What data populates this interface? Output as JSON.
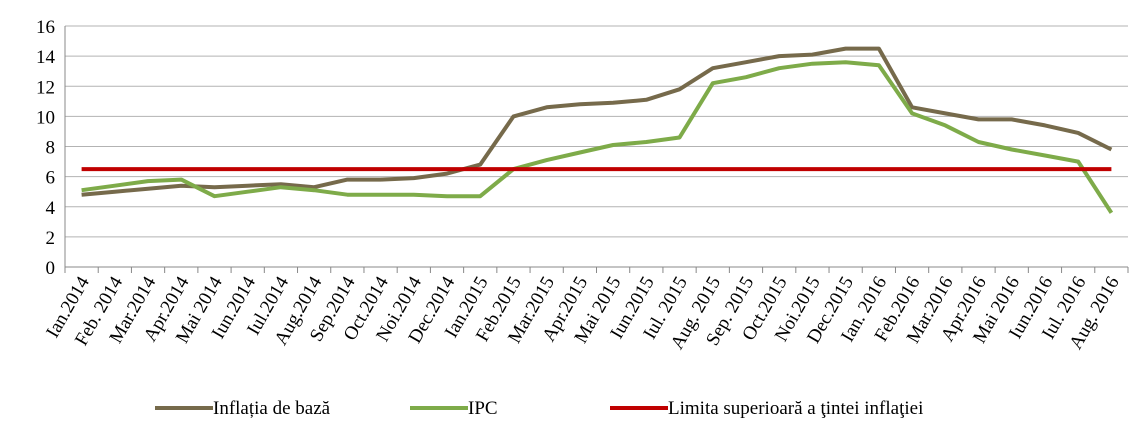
{
  "chart_data": {
    "type": "line",
    "categories": [
      "Ian.2014",
      "Feb. 2014",
      "Mar.2014",
      "Apr.2014",
      "Mai 2014",
      "Iun.2014",
      "Iul.2014",
      "Aug.2014",
      "Sep.2014",
      "Oct.2014",
      "Noi.2014",
      "Dec.2014",
      "Ian.2015",
      "Feb.2015",
      "Mar.2015",
      "Apr.2015",
      "Mai 2015",
      "Iun.2015",
      "Iul. 2015",
      "Aug. 2015",
      "Sep. 2015",
      "Oct.2015",
      "Noi.2015",
      "Dec.2015",
      "Ian. 2016",
      "Feb.2016",
      "Mar.2016",
      "Apr.2016",
      "Mai 2016",
      "Iun.2016",
      "Iul. 2016",
      "Aug. 2016"
    ],
    "series": [
      {
        "name": "Inflația de bază",
        "color": "#766a4b",
        "values": [
          4.8,
          5.0,
          5.2,
          5.4,
          5.3,
          5.4,
          5.5,
          5.3,
          5.8,
          5.8,
          5.9,
          6.2,
          6.8,
          10.0,
          10.6,
          10.8,
          10.9,
          11.1,
          11.8,
          13.2,
          13.6,
          14.0,
          14.1,
          14.5,
          14.5,
          10.6,
          10.2,
          9.8,
          9.8,
          9.4,
          8.9,
          7.8
        ]
      },
      {
        "name": "IPC",
        "color": "#7eab49",
        "values": [
          5.1,
          5.4,
          5.7,
          5.8,
          4.7,
          5.0,
          5.3,
          5.1,
          4.8,
          4.8,
          4.8,
          4.7,
          4.7,
          6.5,
          7.1,
          7.6,
          8.1,
          8.3,
          8.6,
          12.2,
          12.6,
          13.2,
          13.5,
          13.6,
          13.4,
          10.2,
          9.4,
          8.3,
          7.8,
          7.4,
          7.0,
          3.6
        ]
      },
      {
        "name": "Limita superioară a ţintei inflaţiei",
        "color": "#c00000",
        "values": [
          6.5,
          6.5,
          6.5,
          6.5,
          6.5,
          6.5,
          6.5,
          6.5,
          6.5,
          6.5,
          6.5,
          6.5,
          6.5,
          6.5,
          6.5,
          6.5,
          6.5,
          6.5,
          6.5,
          6.5,
          6.5,
          6.5,
          6.5,
          6.5,
          6.5,
          6.5,
          6.5,
          6.5,
          6.5,
          6.5,
          6.5,
          6.5
        ]
      }
    ],
    "ylim": [
      0,
      16
    ],
    "yticks": [
      0,
      2,
      4,
      6,
      8,
      10,
      12,
      14,
      16
    ],
    "grid": true,
    "legend": "bottom"
  }
}
